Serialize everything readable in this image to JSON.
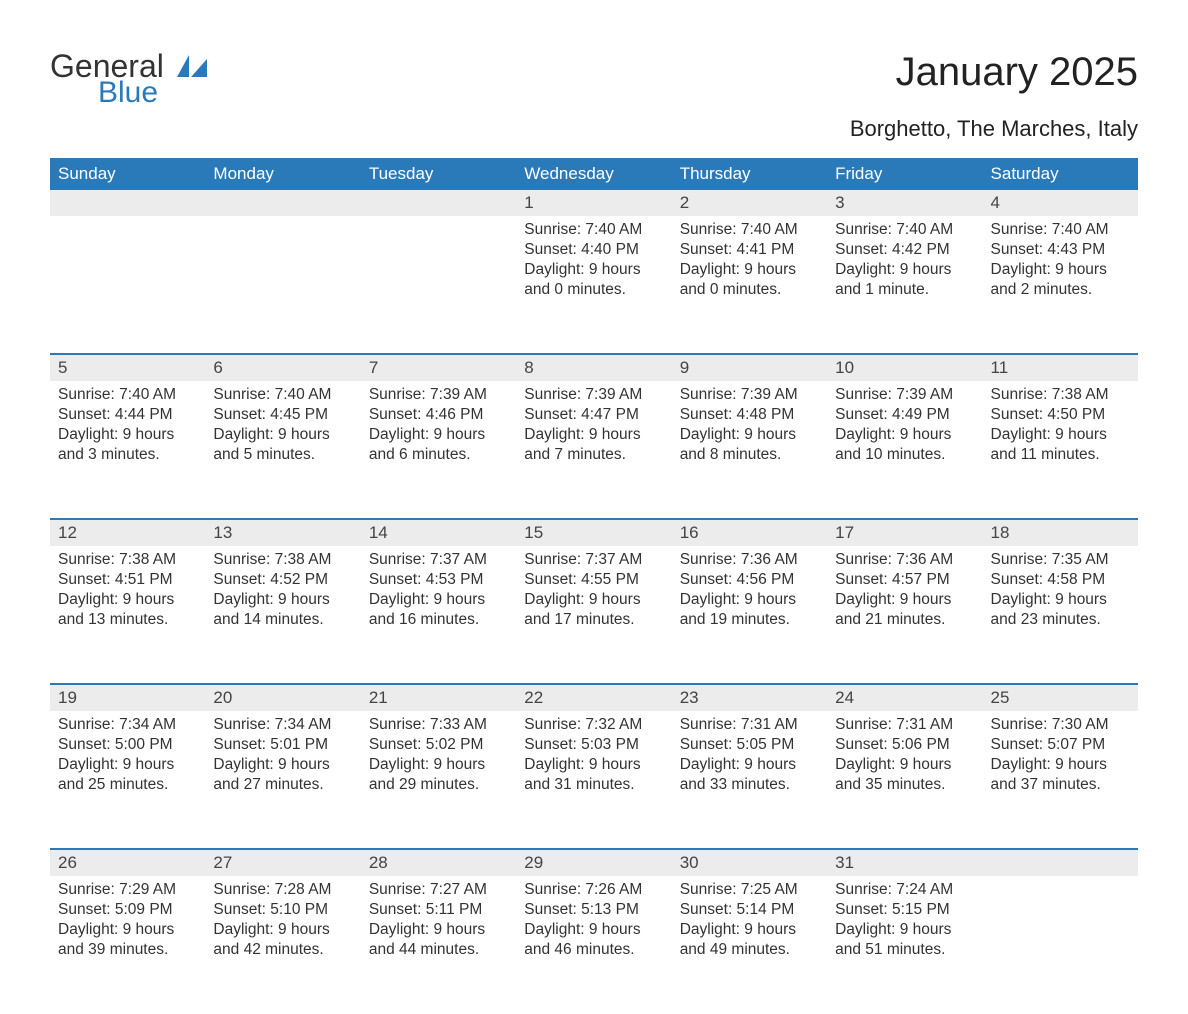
{
  "logo": {
    "word1": "General",
    "word2": "Blue"
  },
  "title": "January 2025",
  "subtitle": "Borghetto, The Marches, Italy",
  "colors": {
    "header_bg": "#2a7ab9",
    "header_text": "#ffffff",
    "daynum_bg": "#ececec",
    "border": "#2a7ab9",
    "text": "#333333",
    "logo_accent": "#2a7ab9"
  },
  "day_names": [
    "Sunday",
    "Monday",
    "Tuesday",
    "Wednesday",
    "Thursday",
    "Friday",
    "Saturday"
  ],
  "weeks": [
    [
      null,
      null,
      null,
      {
        "n": "1",
        "sr": "7:40 AM",
        "ss": "4:40 PM",
        "dl": "9 hours and 0 minutes."
      },
      {
        "n": "2",
        "sr": "7:40 AM",
        "ss": "4:41 PM",
        "dl": "9 hours and 0 minutes."
      },
      {
        "n": "3",
        "sr": "7:40 AM",
        "ss": "4:42 PM",
        "dl": "9 hours and 1 minute."
      },
      {
        "n": "4",
        "sr": "7:40 AM",
        "ss": "4:43 PM",
        "dl": "9 hours and 2 minutes."
      }
    ],
    [
      {
        "n": "5",
        "sr": "7:40 AM",
        "ss": "4:44 PM",
        "dl": "9 hours and 3 minutes."
      },
      {
        "n": "6",
        "sr": "7:40 AM",
        "ss": "4:45 PM",
        "dl": "9 hours and 5 minutes."
      },
      {
        "n": "7",
        "sr": "7:39 AM",
        "ss": "4:46 PM",
        "dl": "9 hours and 6 minutes."
      },
      {
        "n": "8",
        "sr": "7:39 AM",
        "ss": "4:47 PM",
        "dl": "9 hours and 7 minutes."
      },
      {
        "n": "9",
        "sr": "7:39 AM",
        "ss": "4:48 PM",
        "dl": "9 hours and 8 minutes."
      },
      {
        "n": "10",
        "sr": "7:39 AM",
        "ss": "4:49 PM",
        "dl": "9 hours and 10 minutes."
      },
      {
        "n": "11",
        "sr": "7:38 AM",
        "ss": "4:50 PM",
        "dl": "9 hours and 11 minutes."
      }
    ],
    [
      {
        "n": "12",
        "sr": "7:38 AM",
        "ss": "4:51 PM",
        "dl": "9 hours and 13 minutes."
      },
      {
        "n": "13",
        "sr": "7:38 AM",
        "ss": "4:52 PM",
        "dl": "9 hours and 14 minutes."
      },
      {
        "n": "14",
        "sr": "7:37 AM",
        "ss": "4:53 PM",
        "dl": "9 hours and 16 minutes."
      },
      {
        "n": "15",
        "sr": "7:37 AM",
        "ss": "4:55 PM",
        "dl": "9 hours and 17 minutes."
      },
      {
        "n": "16",
        "sr": "7:36 AM",
        "ss": "4:56 PM",
        "dl": "9 hours and 19 minutes."
      },
      {
        "n": "17",
        "sr": "7:36 AM",
        "ss": "4:57 PM",
        "dl": "9 hours and 21 minutes."
      },
      {
        "n": "18",
        "sr": "7:35 AM",
        "ss": "4:58 PM",
        "dl": "9 hours and 23 minutes."
      }
    ],
    [
      {
        "n": "19",
        "sr": "7:34 AM",
        "ss": "5:00 PM",
        "dl": "9 hours and 25 minutes."
      },
      {
        "n": "20",
        "sr": "7:34 AM",
        "ss": "5:01 PM",
        "dl": "9 hours and 27 minutes."
      },
      {
        "n": "21",
        "sr": "7:33 AM",
        "ss": "5:02 PM",
        "dl": "9 hours and 29 minutes."
      },
      {
        "n": "22",
        "sr": "7:32 AM",
        "ss": "5:03 PM",
        "dl": "9 hours and 31 minutes."
      },
      {
        "n": "23",
        "sr": "7:31 AM",
        "ss": "5:05 PM",
        "dl": "9 hours and 33 minutes."
      },
      {
        "n": "24",
        "sr": "7:31 AM",
        "ss": "5:06 PM",
        "dl": "9 hours and 35 minutes."
      },
      {
        "n": "25",
        "sr": "7:30 AM",
        "ss": "5:07 PM",
        "dl": "9 hours and 37 minutes."
      }
    ],
    [
      {
        "n": "26",
        "sr": "7:29 AM",
        "ss": "5:09 PM",
        "dl": "9 hours and 39 minutes."
      },
      {
        "n": "27",
        "sr": "7:28 AM",
        "ss": "5:10 PM",
        "dl": "9 hours and 42 minutes."
      },
      {
        "n": "28",
        "sr": "7:27 AM",
        "ss": "5:11 PM",
        "dl": "9 hours and 44 minutes."
      },
      {
        "n": "29",
        "sr": "7:26 AM",
        "ss": "5:13 PM",
        "dl": "9 hours and 46 minutes."
      },
      {
        "n": "30",
        "sr": "7:25 AM",
        "ss": "5:14 PM",
        "dl": "9 hours and 49 minutes."
      },
      {
        "n": "31",
        "sr": "7:24 AM",
        "ss": "5:15 PM",
        "dl": "9 hours and 51 minutes."
      },
      null
    ]
  ],
  "labels": {
    "sunrise": "Sunrise: ",
    "sunset": "Sunset: ",
    "daylight": "Daylight: "
  }
}
